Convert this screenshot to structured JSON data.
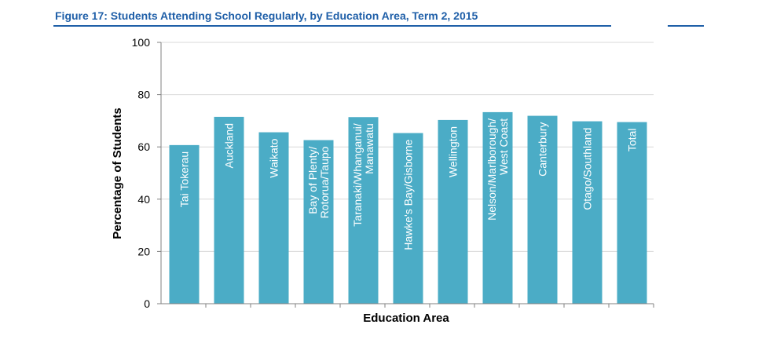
{
  "chart_data": {
    "type": "bar",
    "title": "Figure 17: Students Attending School Regularly, by Education Area, Term 2, 2015",
    "xlabel": "Education Area",
    "ylabel": "Percentage of Students",
    "ylim": [
      0,
      100
    ],
    "yticks": [
      0,
      20,
      40,
      60,
      80,
      100
    ],
    "grid": true,
    "legend": "none",
    "bar_color": "#4bacc6",
    "categories": [
      "Tai Tokerau",
      "Auckland",
      "Waikato",
      "Bay of Plenty/\nRotorua/Taupo",
      "Taranaki/Whanganui/\nManawatu",
      "Hawke's Bay/Gisborne",
      "Wellington",
      "Nelson/Marlborough/\nWest Coast",
      "Canterbury",
      "Otago/Southland",
      "Total"
    ],
    "values": [
      60.7,
      71.5,
      65.6,
      62.6,
      71.4,
      65.3,
      70.3,
      73.3,
      71.9,
      69.8,
      69.5
    ]
  },
  "colors": {
    "title": "#1f5fa8",
    "bars": "#4bacc6",
    "grid": "#d9d9d9",
    "axis": "#808080"
  }
}
